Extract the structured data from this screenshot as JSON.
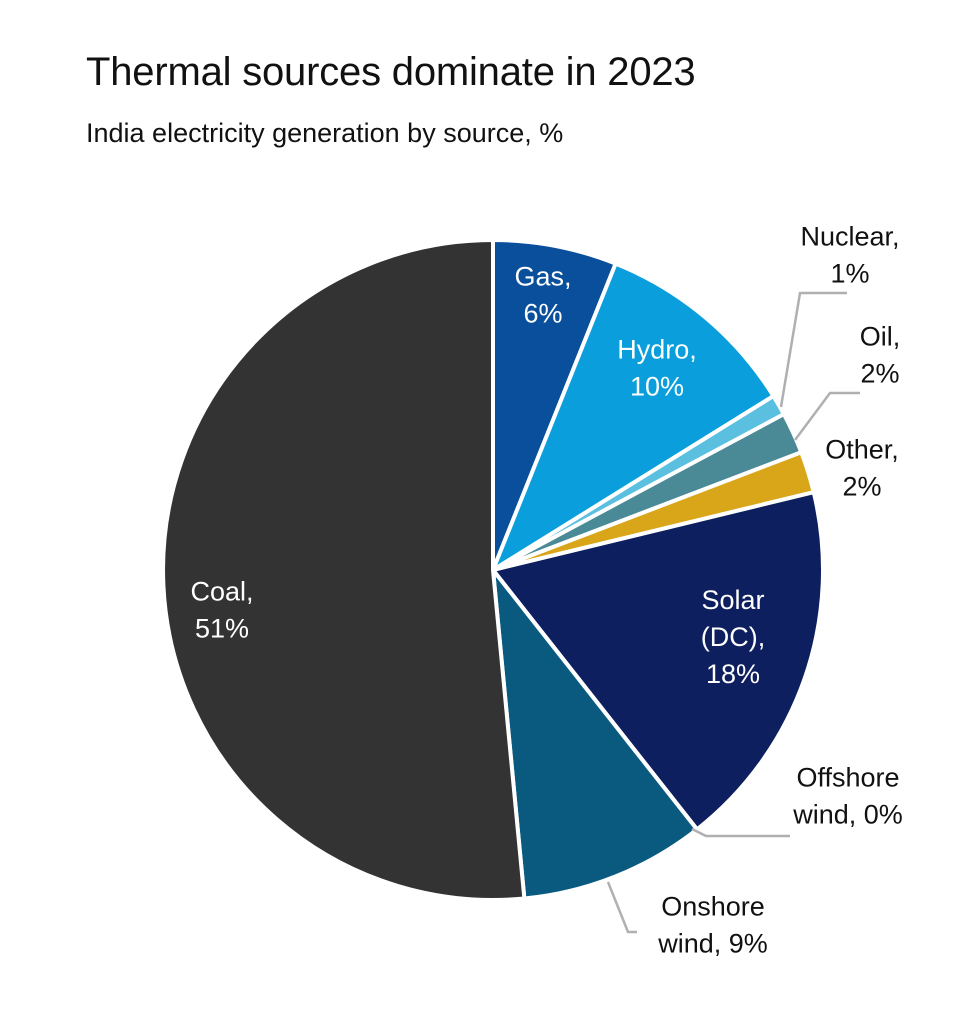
{
  "chart_data": {
    "type": "pie",
    "title": "Thermal sources dominate in 2023",
    "subtitle": "India electricity generation by source, %",
    "series": [
      {
        "name": "Gas",
        "value": 6,
        "color": "#0a4f9c",
        "label_lines": [
          "Gas,",
          "6%"
        ],
        "label_color": "#ffffff",
        "placement": "inside"
      },
      {
        "name": "Hydro",
        "value": 10,
        "color": "#0a9fdc",
        "label_lines": [
          "Hydro,",
          "10%"
        ],
        "label_color": "#ffffff",
        "placement": "inside"
      },
      {
        "name": "Nuclear",
        "value": 1,
        "color": "#5bbfe0",
        "label_lines": [
          "Nuclear,",
          "1%"
        ],
        "label_color": "#111111",
        "placement": "outside"
      },
      {
        "name": "Oil",
        "value": 2,
        "color": "#4a8a96",
        "label_lines": [
          "Oil,",
          "2%"
        ],
        "label_color": "#111111",
        "placement": "outside"
      },
      {
        "name": "Other",
        "value": 2,
        "color": "#d9a61a",
        "label_lines": [
          "Other,",
          "2%"
        ],
        "label_color": "#111111",
        "placement": "outside"
      },
      {
        "name": "Solar (DC)",
        "value": 18,
        "color": "#0d1f5e",
        "label_lines": [
          "Solar",
          "(DC),",
          "18%"
        ],
        "label_color": "#ffffff",
        "placement": "inside"
      },
      {
        "name": "Offshore wind",
        "value": 0,
        "color": "#1f6f8f",
        "label_lines": [
          "Offshore",
          "wind, 0%"
        ],
        "label_color": "#111111",
        "placement": "outside"
      },
      {
        "name": "Onshore wind",
        "value": 9,
        "color": "#0a5a80",
        "label_lines": [
          "Onshore",
          "wind, 9%"
        ],
        "label_color": "#111111",
        "placement": "outside"
      },
      {
        "name": "Coal",
        "value": 51,
        "color": "#333333",
        "label_lines": [
          "Coal,",
          "51%"
        ],
        "label_color": "#ffffff",
        "placement": "inside"
      }
    ],
    "start": "12 o'clock",
    "direction": "clockwise",
    "leader_line_color": "#b0b0b0"
  }
}
